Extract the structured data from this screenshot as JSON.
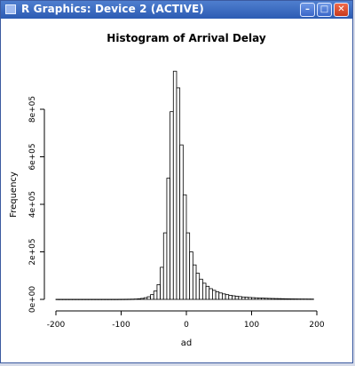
{
  "window": {
    "title": "R Graphics: Device 2 (ACTIVE)",
    "title_icon": "window-icon",
    "minimize_icon": "minimize-icon",
    "maximize_icon": "maximize-icon",
    "close_icon": "close-icon",
    "minimize_glyph": "–",
    "maximize_glyph": "□",
    "close_glyph": "✕"
  },
  "chart_data": {
    "type": "bar",
    "title": "Histogram of Arrival Delay",
    "xlabel": "ad",
    "ylabel": "Frequency",
    "xlim": [
      -200,
      200
    ],
    "ylim": [
      0,
      950000
    ],
    "x_ticks": [
      -200,
      -100,
      0,
      100,
      200
    ],
    "x_tick_labels": [
      "-200",
      "-100",
      "0",
      "100",
      "200"
    ],
    "y_ticks": [
      0,
      200000,
      400000,
      600000,
      800000
    ],
    "y_tick_labels": [
      "0e+00",
      "2e+05",
      "4e+05",
      "6e+05",
      "8e+05"
    ],
    "bin_width": 5,
    "bins_start": [
      -195,
      -190,
      -185,
      -180,
      -175,
      -170,
      -165,
      -160,
      -155,
      -150,
      -145,
      -140,
      -135,
      -130,
      -125,
      -120,
      -115,
      -110,
      -105,
      -100,
      -95,
      -90,
      -85,
      -80,
      -75,
      -70,
      -65,
      -60,
      -55,
      -50,
      -45,
      -40,
      -35,
      -30,
      -25,
      -20,
      -15,
      -10,
      -5,
      0,
      5,
      10,
      15,
      20,
      25,
      30,
      35,
      40,
      45,
      50,
      55,
      60,
      65,
      70,
      75,
      80,
      85,
      90,
      95,
      100,
      105,
      110,
      115,
      120,
      125,
      130,
      135,
      140,
      145,
      150,
      155,
      160,
      165,
      170,
      175,
      180,
      185,
      190,
      195
    ],
    "values": [
      300,
      300,
      300,
      300,
      300,
      300,
      300,
      300,
      300,
      300,
      300,
      300,
      300,
      300,
      300,
      300,
      300,
      300,
      300,
      400,
      500,
      600,
      800,
      1000,
      1500,
      2500,
      4000,
      7000,
      11000,
      20000,
      35000,
      62000,
      135000,
      280000,
      510000,
      790000,
      960000,
      890000,
      650000,
      440000,
      280000,
      200000,
      145000,
      110000,
      85000,
      68000,
      55000,
      45000,
      38000,
      32000,
      27000,
      23000,
      20000,
      17000,
      15000,
      13000,
      11500,
      10000,
      9000,
      8000,
      7200,
      6500,
      5800,
      5200,
      4700,
      4200,
      3800,
      3400,
      3100,
      2800,
      2500,
      2300,
      2100,
      1900,
      1700,
      1600,
      1500,
      1400,
      1300
    ],
    "grid": false,
    "legend": "none"
  }
}
